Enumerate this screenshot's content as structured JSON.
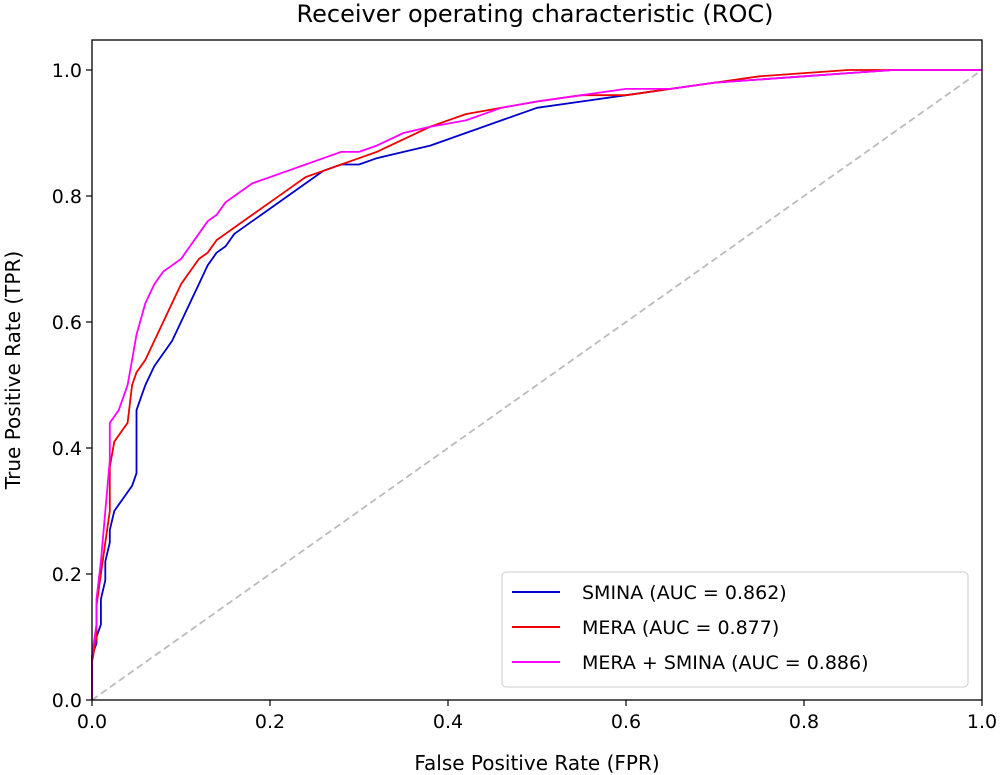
{
  "chart_data": {
    "type": "line",
    "title": "Receiver operating characteristic (ROC)",
    "xlabel": "False Positive Rate (FPR)",
    "ylabel": "True Positive Rate (TPR)",
    "xlim": [
      0.0,
      1.0
    ],
    "ylim": [
      0.0,
      1.0
    ],
    "x_ticks": [
      "0.0",
      "0.2",
      "0.4",
      "0.6",
      "0.8",
      "1.0"
    ],
    "y_ticks": [
      "0.0",
      "0.2",
      "0.4",
      "0.6",
      "0.8",
      "1.0"
    ],
    "grid": false,
    "legend_position": "lower-right",
    "diagonal": {
      "x": [
        0,
        1
      ],
      "y": [
        0,
        1
      ],
      "color": "#bbbbbb",
      "style": "dashed"
    },
    "series": [
      {
        "name": "SMINA (AUC = 0.862)",
        "color": "#0000cc",
        "x": [
          0,
          0,
          0.005,
          0.005,
          0.01,
          0.01,
          0.015,
          0.015,
          0.02,
          0.02,
          0.025,
          0.03,
          0.035,
          0.04,
          0.045,
          0.05,
          0.05,
          0.055,
          0.06,
          0.07,
          0.08,
          0.09,
          0.1,
          0.11,
          0.12,
          0.13,
          0.14,
          0.15,
          0.16,
          0.18,
          0.2,
          0.22,
          0.24,
          0.26,
          0.28,
          0.3,
          0.32,
          0.35,
          0.38,
          0.42,
          0.46,
          0.5,
          0.55,
          0.6,
          0.65,
          0.7,
          0.75,
          0.8,
          0.85,
          0.9,
          0.95,
          1.0
        ],
        "y": [
          0,
          0.07,
          0.09,
          0.1,
          0.12,
          0.16,
          0.19,
          0.22,
          0.25,
          0.27,
          0.3,
          0.31,
          0.32,
          0.33,
          0.34,
          0.36,
          0.46,
          0.48,
          0.5,
          0.53,
          0.55,
          0.57,
          0.6,
          0.63,
          0.66,
          0.69,
          0.71,
          0.72,
          0.74,
          0.76,
          0.78,
          0.8,
          0.82,
          0.84,
          0.85,
          0.85,
          0.86,
          0.87,
          0.88,
          0.9,
          0.92,
          0.94,
          0.95,
          0.96,
          0.97,
          0.98,
          0.985,
          0.99,
          0.995,
          1.0,
          1.0,
          1.0
        ]
      },
      {
        "name": "MERA (AUC = 0.877)",
        "color": "#ee0000",
        "x": [
          0,
          0,
          0.005,
          0.005,
          0.01,
          0.015,
          0.02,
          0.02,
          0.025,
          0.03,
          0.04,
          0.045,
          0.05,
          0.06,
          0.07,
          0.08,
          0.09,
          0.1,
          0.11,
          0.12,
          0.13,
          0.14,
          0.15,
          0.16,
          0.18,
          0.2,
          0.22,
          0.24,
          0.26,
          0.28,
          0.3,
          0.32,
          0.35,
          0.38,
          0.42,
          0.46,
          0.5,
          0.55,
          0.6,
          0.65,
          0.7,
          0.75,
          0.8,
          0.85,
          0.9,
          0.95,
          1.0
        ],
        "y": [
          0,
          0.06,
          0.1,
          0.15,
          0.2,
          0.25,
          0.3,
          0.37,
          0.41,
          0.42,
          0.44,
          0.5,
          0.52,
          0.54,
          0.57,
          0.6,
          0.63,
          0.66,
          0.68,
          0.7,
          0.71,
          0.73,
          0.74,
          0.75,
          0.77,
          0.79,
          0.81,
          0.83,
          0.84,
          0.85,
          0.86,
          0.87,
          0.89,
          0.91,
          0.93,
          0.94,
          0.95,
          0.96,
          0.96,
          0.97,
          0.98,
          0.99,
          0.995,
          1.0,
          1.0,
          1.0,
          1.0
        ]
      },
      {
        "name": "MERA + SMINA (AUC = 0.886)",
        "color": "#ff00ff",
        "x": [
          0,
          0,
          0.005,
          0.005,
          0.01,
          0.015,
          0.02,
          0.02,
          0.025,
          0.03,
          0.04,
          0.045,
          0.05,
          0.06,
          0.07,
          0.08,
          0.09,
          0.1,
          0.11,
          0.12,
          0.13,
          0.14,
          0.15,
          0.16,
          0.18,
          0.2,
          0.22,
          0.24,
          0.26,
          0.28,
          0.3,
          0.32,
          0.35,
          0.38,
          0.42,
          0.46,
          0.5,
          0.55,
          0.6,
          0.65,
          0.7,
          0.75,
          0.8,
          0.85,
          0.9,
          0.95,
          1.0
        ],
        "y": [
          0,
          0.07,
          0.12,
          0.16,
          0.22,
          0.3,
          0.38,
          0.44,
          0.45,
          0.46,
          0.5,
          0.54,
          0.58,
          0.63,
          0.66,
          0.68,
          0.69,
          0.7,
          0.72,
          0.74,
          0.76,
          0.77,
          0.79,
          0.8,
          0.82,
          0.83,
          0.84,
          0.85,
          0.86,
          0.87,
          0.87,
          0.88,
          0.9,
          0.91,
          0.92,
          0.94,
          0.95,
          0.96,
          0.97,
          0.97,
          0.98,
          0.985,
          0.99,
          0.995,
          1.0,
          1.0,
          1.0
        ]
      }
    ]
  }
}
